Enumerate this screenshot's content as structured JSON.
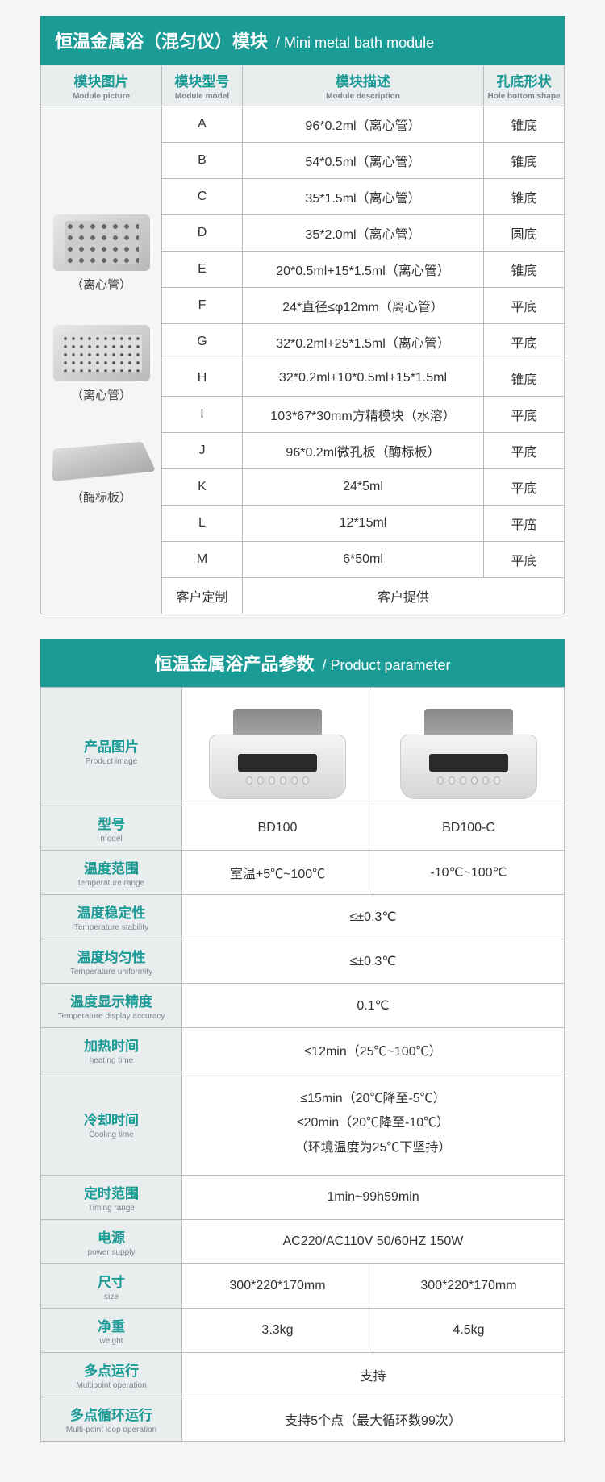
{
  "colors": {
    "primary": "#1a9b96",
    "header_bg": "#e9edee",
    "border": "#b8bcc0",
    "text": "#333333",
    "sublabel": "#7a8890"
  },
  "module_section": {
    "title_cn": "恒温金属浴（混匀仪）模块",
    "title_en": "/ Mini metal bath module",
    "columns": [
      {
        "cn": "模块图片",
        "en": "Module picture"
      },
      {
        "cn": "模块型号",
        "en": "Module model"
      },
      {
        "cn": "模块描述",
        "en": "Module description"
      },
      {
        "cn": "孔底形状",
        "en": "Hole bottom shape"
      }
    ],
    "images": [
      {
        "label": "（离心管）",
        "kind": "tubes"
      },
      {
        "label": "（离心管）",
        "kind": "plate"
      },
      {
        "label": "（酶标板）",
        "kind": "slab"
      }
    ],
    "rows": [
      {
        "model": "A",
        "desc": "96*0.2ml（离心管）",
        "shape": "锥底"
      },
      {
        "model": "B",
        "desc": "54*0.5ml（离心管）",
        "shape": "锥底"
      },
      {
        "model": "C",
        "desc": "35*1.5ml（离心管）",
        "shape": "锥底"
      },
      {
        "model": "D",
        "desc": "35*2.0ml（离心管）",
        "shape": "圆底"
      },
      {
        "model": "E",
        "desc": "20*0.5ml+15*1.5ml（离心管）",
        "shape": "锥底"
      },
      {
        "model": "F",
        "desc": "24*直径≤φ12mm（离心管）",
        "shape": "平底"
      },
      {
        "model": "G",
        "desc": "32*0.2ml+25*1.5ml（离心管）",
        "shape": "平底"
      },
      {
        "model": "H",
        "desc": "32*0.2ml+10*0.5ml+15*1.5ml",
        "shape": "锥底"
      },
      {
        "model": "I",
        "desc": "103*67*30mm方精模块（水溶）",
        "shape": "平底"
      },
      {
        "model": "J",
        "desc": "96*0.2ml微孔板（酶标板）",
        "shape": "平底"
      },
      {
        "model": "K",
        "desc": "24*5ml",
        "shape": "平底"
      },
      {
        "model": "L",
        "desc": "12*15ml",
        "shape": "平庿"
      },
      {
        "model": "M",
        "desc": "6*50ml",
        "shape": "平底"
      }
    ],
    "custom_row": {
      "model": "客户定制",
      "desc": "客户提供"
    }
  },
  "param_section": {
    "title_cn": "恒温金属浴产品参数",
    "title_en": "/ Product parameter",
    "image_row": {
      "cn": "产品图片",
      "en": "Product image"
    },
    "rows": [
      {
        "cn": "型号",
        "en": "model",
        "v1": "BD100",
        "v2": "BD100-C",
        "split": true
      },
      {
        "cn": "温度范围",
        "en": "temperature range",
        "v1": "室温+5℃~100℃",
        "v2": "-10℃~100℃",
        "split": true
      },
      {
        "cn": "温度稳定性",
        "en": "Temperature stability",
        "v": "≤±0.3℃"
      },
      {
        "cn": "温度均匀性",
        "en": "Temperature uniformity",
        "v": "≤±0.3℃"
      },
      {
        "cn": "温度显示精度",
        "en": "Temperature display accuracy",
        "v": "0.1℃"
      },
      {
        "cn": "加热时间",
        "en": "heating time",
        "v": "≤12min（25℃~100℃）"
      },
      {
        "cn": "冷却时间",
        "en": "Cooling time",
        "v": "≤15min（20℃降至-5℃）\n≤20min（20℃降至-10℃）\n（环境温度为25℃下坚持）",
        "tall": true
      },
      {
        "cn": "定时范围",
        "en": "Timing range",
        "v": "1min~99h59min"
      },
      {
        "cn": "电源",
        "en": "power supply",
        "v": "AC220/AC110V  50/60HZ  150W"
      },
      {
        "cn": "尺寸",
        "en": "size",
        "v1": "300*220*170mm",
        "v2": "300*220*170mm",
        "split": true
      },
      {
        "cn": "净重",
        "en": "weight",
        "v1": "3.3kg",
        "v2": "4.5kg",
        "split": true
      },
      {
        "cn": "多点运行",
        "en": "Multipoint operation",
        "v": "支持"
      },
      {
        "cn": "多点循环运行",
        "en": "Multi-point loop operation",
        "v": "支持5个点（最大循环数99次）"
      }
    ]
  }
}
